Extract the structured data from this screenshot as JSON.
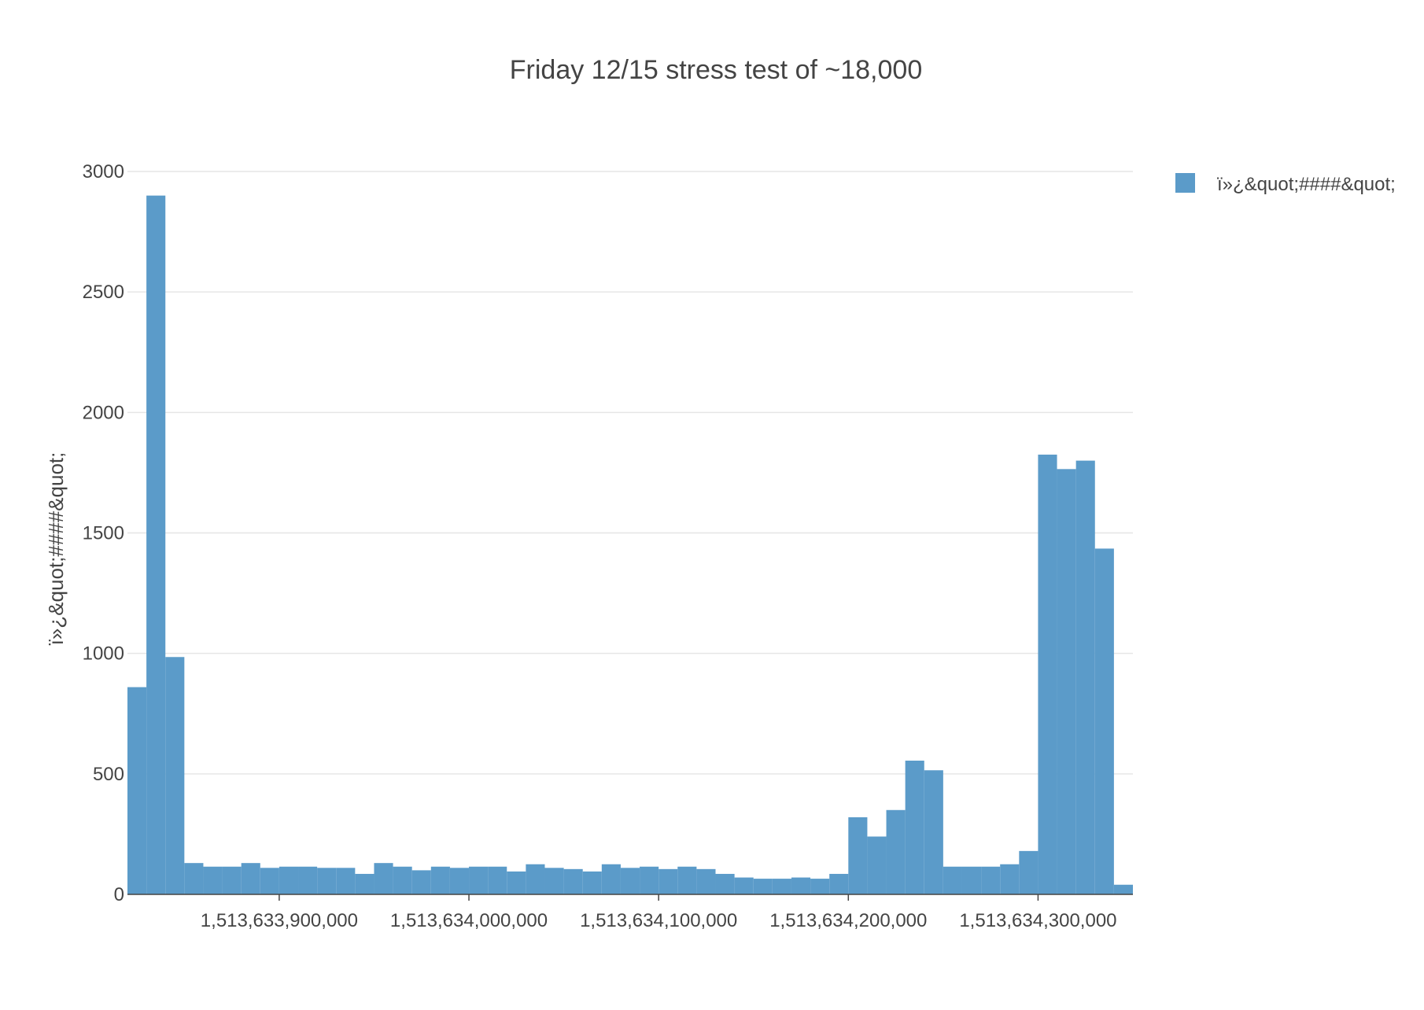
{
  "chart_data": {
    "type": "bar",
    "title": "Friday 12/15 stress test of ~18,000",
    "xlabel": "",
    "ylabel": "ï»¿&quot;####&quot;",
    "legend_position": "top-right",
    "grid": true,
    "xlim": [
      1513633820,
      1513634350
    ],
    "ylim": [
      0,
      3000
    ],
    "x_ticks": [
      1513633900,
      1513634000,
      1513634100,
      1513634200,
      1513634300
    ],
    "x_tick_labels": [
      "1,513,633,900,000",
      "1,513,634,000,000",
      "1,513,634,100,000",
      "1,513,634,200,000",
      "1,513,634,300,000"
    ],
    "y_ticks": [
      0,
      500,
      1000,
      1500,
      2000,
      2500,
      3000
    ],
    "y_tick_labels": [
      "0",
      "500",
      "1000",
      "1500",
      "2000",
      "2500",
      "3000"
    ],
    "bin_size": 10,
    "bin_start": 1513633820,
    "series": [
      {
        "name": "ï»¿&quot;####&quot;",
        "color": "#5b9bc9",
        "values": [
          860,
          2900,
          985,
          130,
          115,
          115,
          130,
          110,
          115,
          115,
          110,
          110,
          85,
          130,
          115,
          100,
          115,
          110,
          115,
          115,
          95,
          125,
          110,
          105,
          95,
          125,
          110,
          115,
          105,
          115,
          105,
          85,
          70,
          65,
          65,
          70,
          65,
          85,
          320,
          240,
          350,
          555,
          515,
          115,
          115,
          115,
          125,
          180,
          1825,
          1765,
          1800,
          1435,
          40
        ]
      }
    ]
  }
}
